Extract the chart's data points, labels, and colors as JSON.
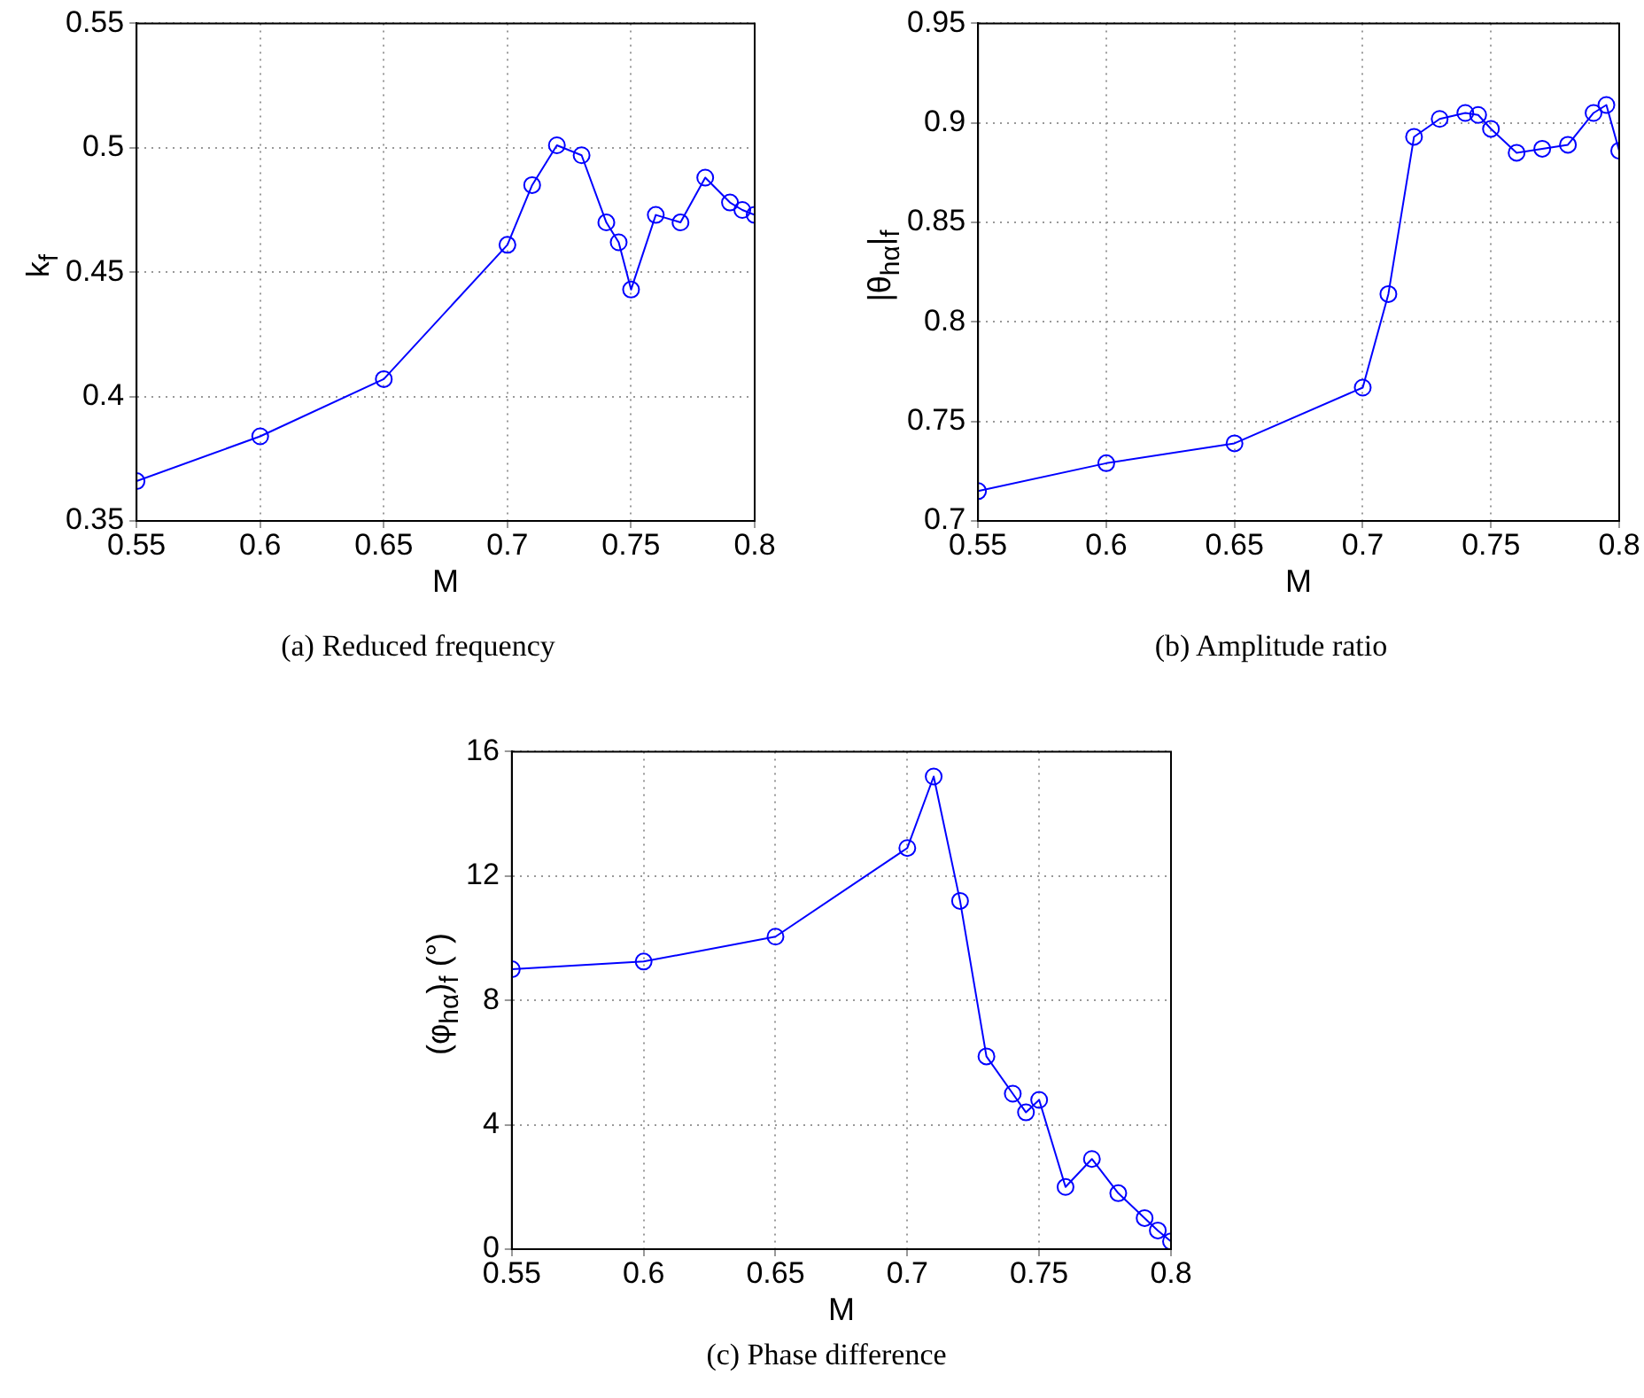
{
  "chart_data": [
    {
      "type": "line",
      "x": [
        0.55,
        0.6,
        0.65,
        0.7,
        0.71,
        0.72,
        0.73,
        0.74,
        0.745,
        0.75,
        0.76,
        0.77,
        0.78,
        0.79,
        0.795,
        0.8
      ],
      "series": [
        {
          "color": "#0000ff",
          "values": [
            0.366,
            0.384,
            0.407,
            0.461,
            0.485,
            0.501,
            0.497,
            0.47,
            0.462,
            0.443,
            0.473,
            0.47,
            0.488,
            0.478,
            0.475,
            0.473
          ]
        }
      ],
      "xlim": [
        0.55,
        0.8
      ],
      "xticks": [
        0.55,
        0.6,
        0.65,
        0.7,
        0.75,
        0.8
      ],
      "ylim": [
        0.35,
        0.55
      ],
      "yticks": [
        0.35,
        0.4,
        0.45,
        0.5,
        0.55
      ],
      "xlabel": "M",
      "ylabel": "k$_{f}$",
      "annotations": [
        "(a)  Reduced frequency"
      ],
      "grid": true,
      "marker": "circle",
      "line_style": "solid"
    },
    {
      "type": "line",
      "x": [
        0.55,
        0.6,
        0.65,
        0.7,
        0.71,
        0.72,
        0.73,
        0.74,
        0.745,
        0.75,
        0.76,
        0.77,
        0.78,
        0.79,
        0.795,
        0.8
      ],
      "series": [
        {
          "color": "#0000ff",
          "values": [
            0.715,
            0.729,
            0.739,
            0.767,
            0.814,
            0.893,
            0.902,
            0.905,
            0.904,
            0.897,
            0.885,
            0.887,
            0.889,
            0.905,
            0.909,
            0.886
          ]
        }
      ],
      "xlim": [
        0.55,
        0.8
      ],
      "xticks": [
        0.55,
        0.6,
        0.65,
        0.7,
        0.75,
        0.8
      ],
      "ylim": [
        0.7,
        0.95
      ],
      "yticks": [
        0.7,
        0.75,
        0.8,
        0.85,
        0.9,
        0.95
      ],
      "xlabel": "M",
      "ylabel": "|θ$_{hα}$|$_{f}$",
      "annotations": [
        "(b)  Amplitude ratio"
      ],
      "grid": true,
      "marker": "circle",
      "line_style": "solid"
    },
    {
      "type": "line",
      "x": [
        0.55,
        0.6,
        0.65,
        0.7,
        0.71,
        0.72,
        0.73,
        0.74,
        0.745,
        0.75,
        0.76,
        0.77,
        0.78,
        0.79,
        0.795,
        0.8
      ],
      "series": [
        {
          "color": "#0000ff",
          "values": [
            9.0,
            9.25,
            10.05,
            12.9,
            15.2,
            11.2,
            6.2,
            5.0,
            4.4,
            4.8,
            2.0,
            2.9,
            1.8,
            1.0,
            0.6,
            0.25
          ]
        }
      ],
      "xlim": [
        0.55,
        0.8
      ],
      "xticks": [
        0.55,
        0.6,
        0.65,
        0.7,
        0.75,
        0.8
      ],
      "ylim": [
        0,
        16
      ],
      "yticks": [
        0,
        4,
        8,
        12,
        16
      ],
      "xlabel": "M",
      "ylabel": "(φ$_{hα}$)$_{f}$ (°)",
      "annotations": [
        "(c)  Phase difference"
      ],
      "grid": true,
      "marker": "circle",
      "line_style": "solid"
    }
  ]
}
